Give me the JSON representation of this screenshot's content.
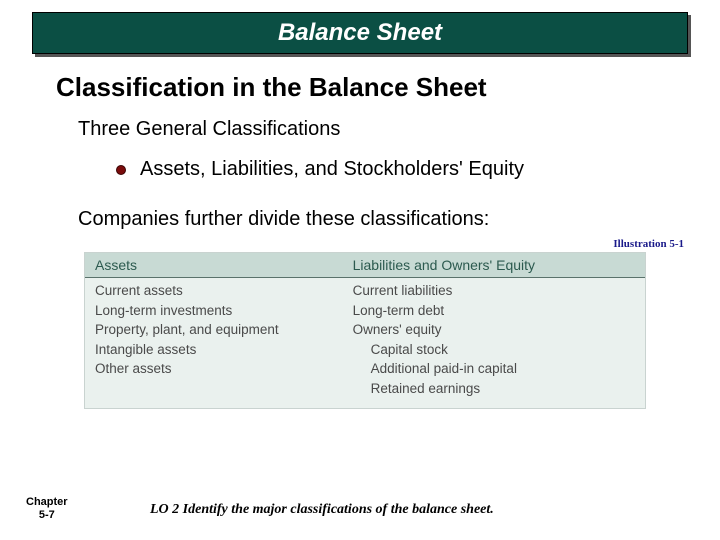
{
  "banner": {
    "title": "Balance Sheet",
    "bg": "#0b4f44",
    "text_color": "#ffffff"
  },
  "subtitle": "Classification in the Balance Sheet",
  "subhead": "Three General Classifications",
  "bullet": {
    "text": "Assets, Liabilities, and Stockholders' Equity",
    "dot_color": "#7a0b0b"
  },
  "body_line": "Companies further divide these classifications:",
  "illustration_label": "Illustration 5-1",
  "table": {
    "header_bg": "#c8dad4",
    "body_bg": "#eaf1ee",
    "header_text_color": "#2c5a4f",
    "body_text_color": "#4a4a4a",
    "columns": [
      {
        "label": "Assets",
        "width_pct": 46
      },
      {
        "label": "Liabilities and Owners' Equity",
        "width_pct": 54
      }
    ],
    "rows_left": [
      "Current assets",
      "Long-term investments",
      "Property, plant, and equipment",
      "Intangible assets",
      "Other assets"
    ],
    "rows_right": [
      {
        "text": "Current liabilities",
        "indent": false
      },
      {
        "text": "Long-term debt",
        "indent": false
      },
      {
        "text": "Owners' equity",
        "indent": false
      },
      {
        "text": "Capital stock",
        "indent": true
      },
      {
        "text": "Additional paid-in capital",
        "indent": true
      },
      {
        "text": "Retained earnings",
        "indent": true
      }
    ]
  },
  "chapter": {
    "line1": "Chapter",
    "line2": "5-7"
  },
  "lo": "LO 2  Identify the major classifications of the balance sheet."
}
